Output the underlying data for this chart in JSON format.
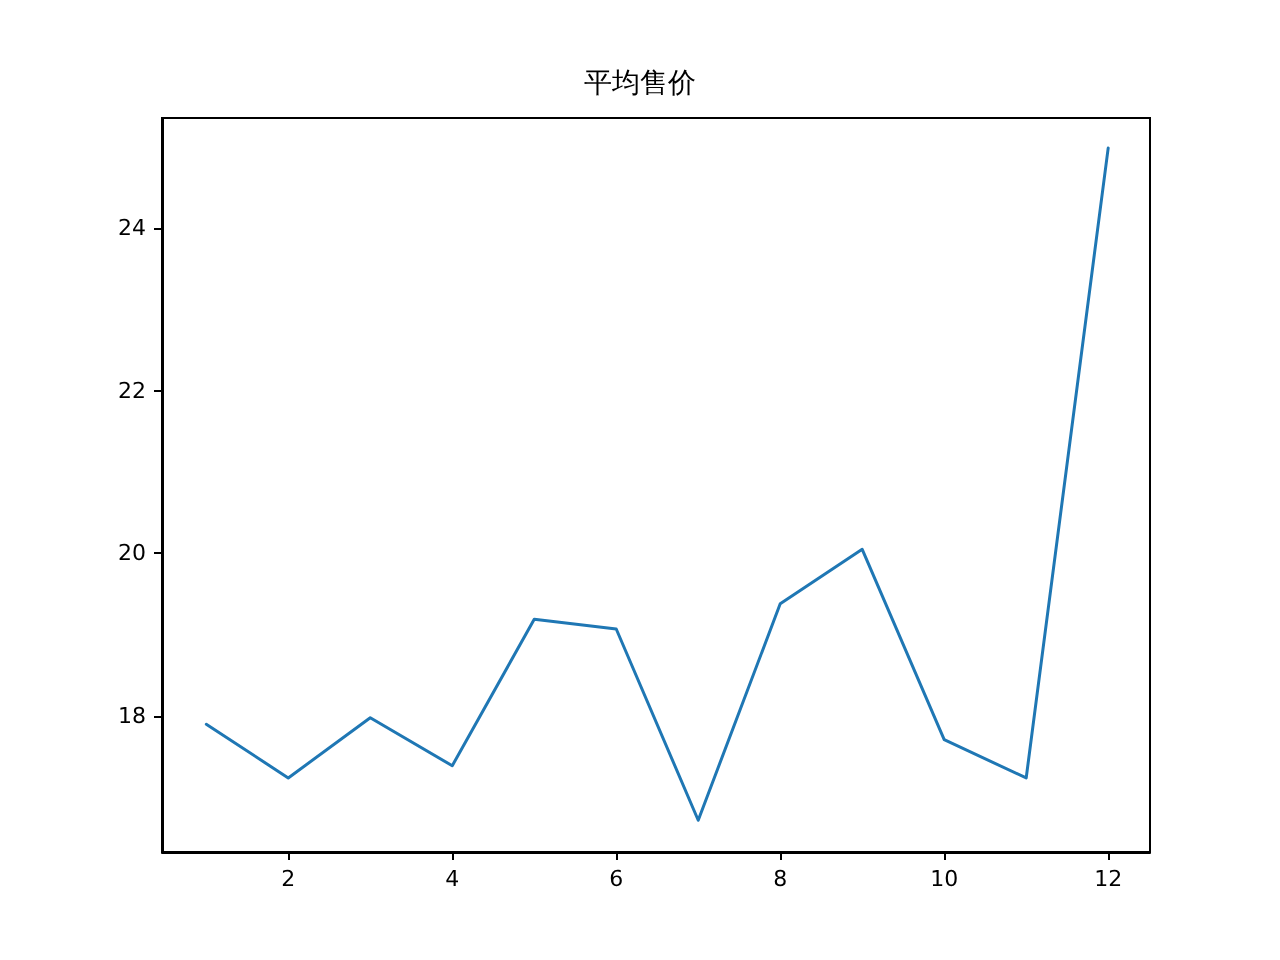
{
  "chart_data": {
    "type": "line",
    "title": "平均售价",
    "x": [
      1,
      2,
      3,
      4,
      5,
      6,
      7,
      8,
      9,
      10,
      11,
      12
    ],
    "series": [
      {
        "color": "#1f77b4",
        "values": [
          17.9,
          17.24,
          17.98,
          17.39,
          19.19,
          19.07,
          16.72,
          19.38,
          20.05,
          17.71,
          17.24,
          24.98
        ]
      }
    ],
    "xlim": [
      0.46,
      12.51
    ],
    "xticks": [
      2,
      4,
      6,
      8,
      10,
      12
    ],
    "ylim": [
      16.33,
      25.35
    ],
    "yticks": [
      18,
      20,
      22,
      24
    ],
    "grid": false,
    "marker": "none",
    "line_style": "solid"
  }
}
